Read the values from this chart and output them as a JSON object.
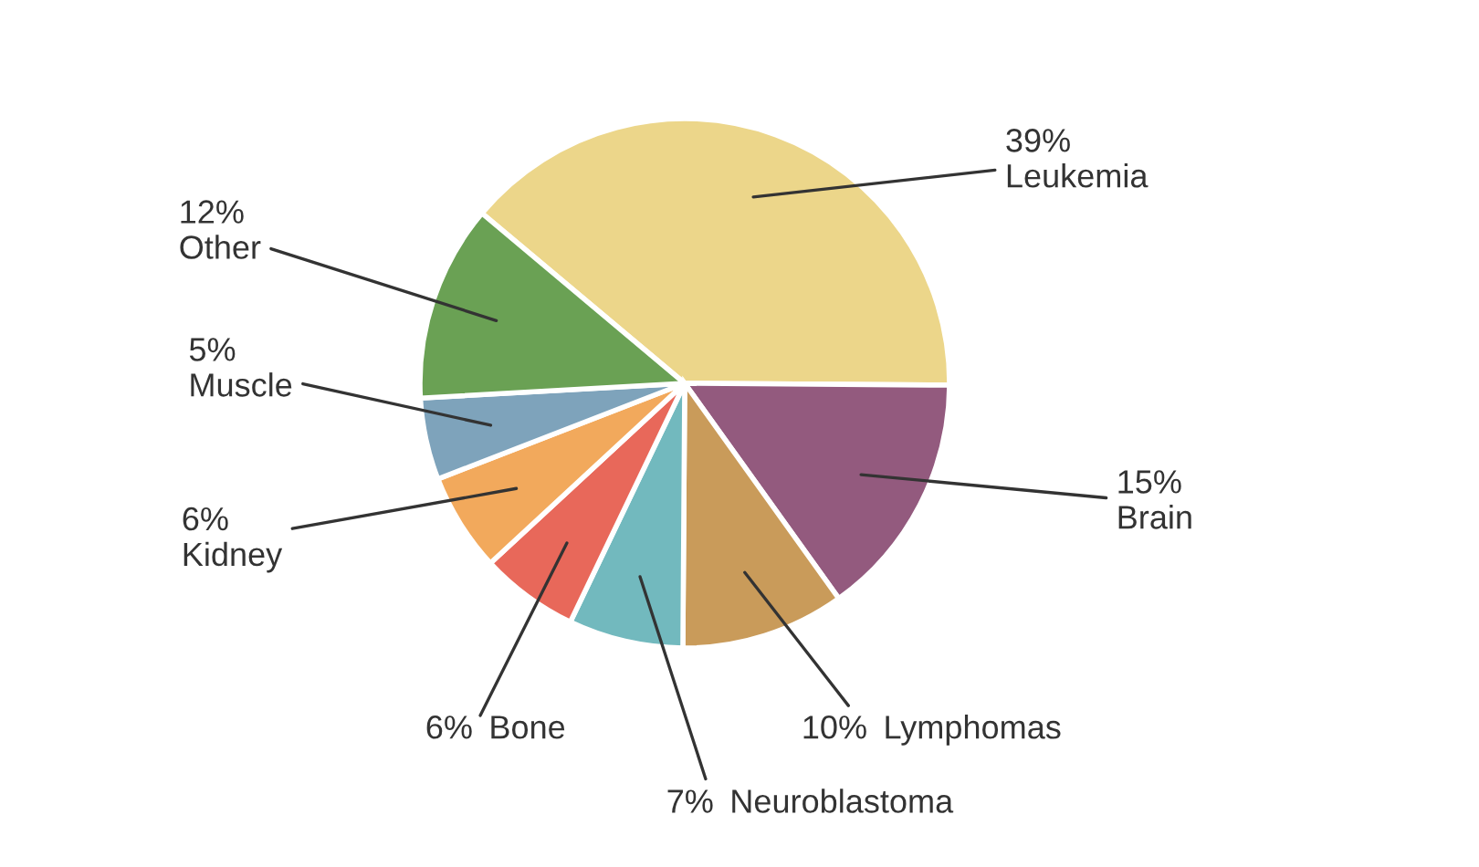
{
  "chart_data": {
    "type": "pie",
    "categories": [
      "Leukemia",
      "Brain",
      "Lymphomas",
      "Neuroblastoma",
      "Bone",
      "Kidney",
      "Muscle",
      "Other"
    ],
    "values": [
      39,
      15,
      10,
      7,
      6,
      6,
      5,
      12
    ],
    "value_labels": [
      "39%",
      "15%",
      "10%",
      "7%",
      "6%",
      "6%",
      "5%",
      "12%"
    ],
    "colors": [
      "#ecd68a",
      "#935a7e",
      "#c99b5a",
      "#72b9be",
      "#e8685a",
      "#f2a95c",
      "#7ea3bb",
      "#6aa154"
    ],
    "legend": false
  }
}
